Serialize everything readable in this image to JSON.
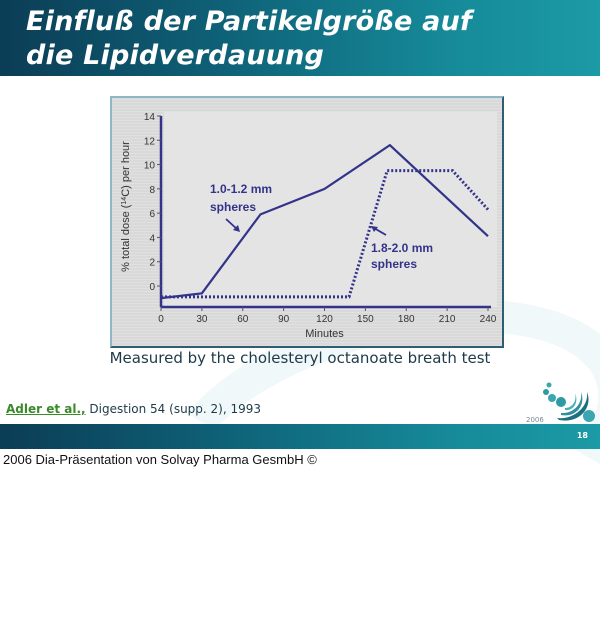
{
  "slide": {
    "title_line1": "Einfluß der Partikelgröße auf",
    "title_line2": "die Lipidverdauung",
    "caption": "Measured by the cholesteryl octanoate breath test",
    "citation_author": "Adler et al.,",
    "citation_rest": " Digestion 54 (supp. 2), 1993",
    "logo_year": "2006",
    "page_number": "18",
    "copyright": "2006 Dia-Präsentation von Solvay Pharma GesmbH ©"
  },
  "colors": {
    "title_bar_dark": "#0b3d55",
    "title_bar_light": "#1c9aa6",
    "series": "#33338a",
    "citation_author": "#3a8a2a",
    "plot_bg": "#e4e4e4",
    "frame_bg": "#d9d9d9"
  },
  "chart_data": {
    "type": "line",
    "title": "",
    "xlabel": "Minutes",
    "ylabel": "% total dose (14C) per hour",
    "xlim": [
      0,
      240
    ],
    "ylim": [
      -1.7,
      14
    ],
    "xticks": [
      0,
      30,
      60,
      90,
      120,
      150,
      180,
      210,
      240
    ],
    "yticks": [
      0,
      2,
      4,
      6,
      8,
      10,
      12,
      14
    ],
    "grid": false,
    "legend": "inline annotations",
    "series": [
      {
        "name": "1.0-1.2 mm spheres",
        "style": "solid",
        "x": [
          0,
          30,
          73,
          120,
          168,
          240
        ],
        "y": [
          -1.0,
          -0.6,
          5.9,
          8.0,
          11.6,
          4.1
        ]
      },
      {
        "name": "1.8-2.0 mm spheres",
        "style": "dotted",
        "x": [
          0,
          138,
          166,
          214,
          240
        ],
        "y": [
          -0.9,
          -0.9,
          9.5,
          9.5,
          6.3
        ]
      }
    ],
    "annotations": [
      {
        "text_line1": "1.0-1.2 mm",
        "text_line2": "spheres",
        "points_to": "solid series near 60 min"
      },
      {
        "text_line1": "1.8-2.0 mm",
        "text_line2": "spheres",
        "points_to": "dotted series near 155 min"
      }
    ]
  }
}
